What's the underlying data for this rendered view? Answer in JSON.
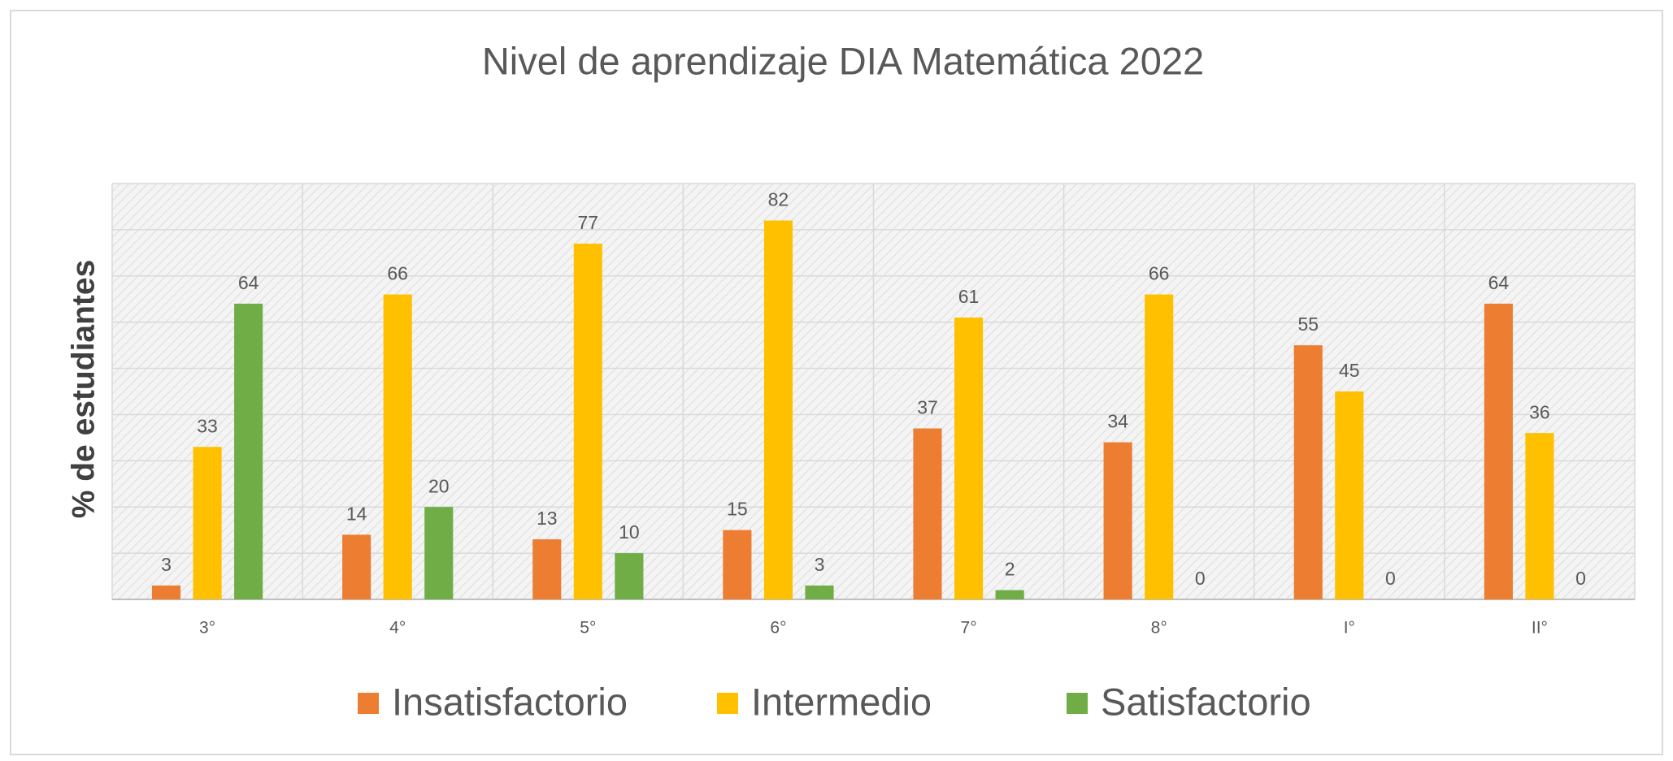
{
  "chart_data": {
    "type": "bar",
    "title": "Nivel de aprendizaje DIA Matemática 2022",
    "y_label": "% de estudiantes",
    "categories": [
      "3°",
      "4°",
      "5°",
      "6°",
      "7°",
      "8°",
      "I°",
      "II°"
    ],
    "series": [
      {
        "name": "Insatisfactorio",
        "color": "#ed7d31",
        "values": [
          3,
          14,
          13,
          15,
          37,
          34,
          55,
          64
        ]
      },
      {
        "name": "Intermedio",
        "color": "#ffc000",
        "values": [
          33,
          66,
          77,
          82,
          61,
          66,
          45,
          36
        ]
      },
      {
        "name": "Satisfactorio",
        "color": "#70ad47",
        "values": [
          64,
          20,
          10,
          3,
          2,
          0,
          0,
          0
        ]
      }
    ],
    "ylim": [
      0,
      90
    ],
    "yticks": [
      0,
      10,
      20,
      30,
      40,
      50,
      60,
      70,
      80,
      90
    ],
    "grid": true,
    "legend": "bottom"
  }
}
